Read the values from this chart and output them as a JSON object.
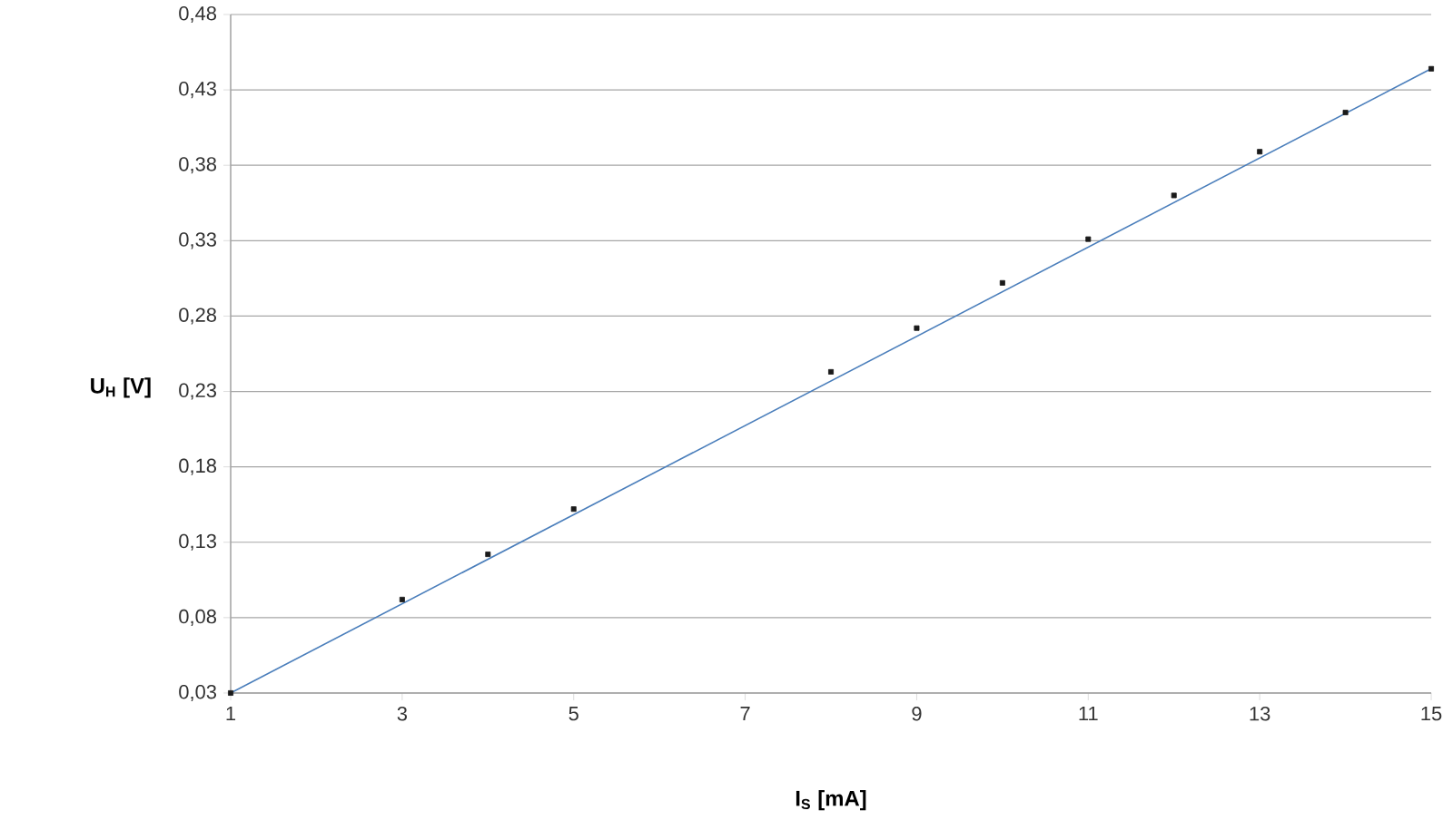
{
  "chart_data": {
    "type": "scatter",
    "xlabel": "I$_{S}$ [mA]",
    "ylabel": "U$_{H}$ [V]",
    "xlim": [
      1,
      15
    ],
    "xticks": [
      1,
      3,
      5,
      7,
      9,
      11,
      13,
      15
    ],
    "ylim": [
      0.03,
      0.48
    ],
    "yticks": [
      {
        "value": 0.03,
        "label": "0,03"
      },
      {
        "value": 0.08,
        "label": "0,08"
      },
      {
        "value": 0.13,
        "label": "0,13"
      },
      {
        "value": 0.18,
        "label": "0,18"
      },
      {
        "value": 0.23,
        "label": "0,23"
      },
      {
        "value": 0.28,
        "label": "0,28"
      },
      {
        "value": 0.33,
        "label": "0,33"
      },
      {
        "value": 0.38,
        "label": "0,38"
      },
      {
        "value": 0.43,
        "label": "0,43"
      },
      {
        "value": 0.48,
        "label": "0,48"
      }
    ],
    "grid": "y",
    "marker": "square",
    "series": [
      {
        "type": "line",
        "color": "#4a7ebb",
        "x": [
          1,
          15
        ],
        "values": [
          0.03,
          0.444
        ],
        "marker": "none"
      },
      {
        "color": "#1a1a1a",
        "x": [
          1,
          3,
          4,
          5,
          8,
          9,
          10,
          11,
          12,
          13,
          14,
          15
        ],
        "values": [
          0.03,
          0.092,
          0.122,
          0.152,
          0.243,
          0.272,
          0.302,
          0.331,
          0.36,
          0.389,
          0.415,
          0.444
        ]
      }
    ]
  }
}
